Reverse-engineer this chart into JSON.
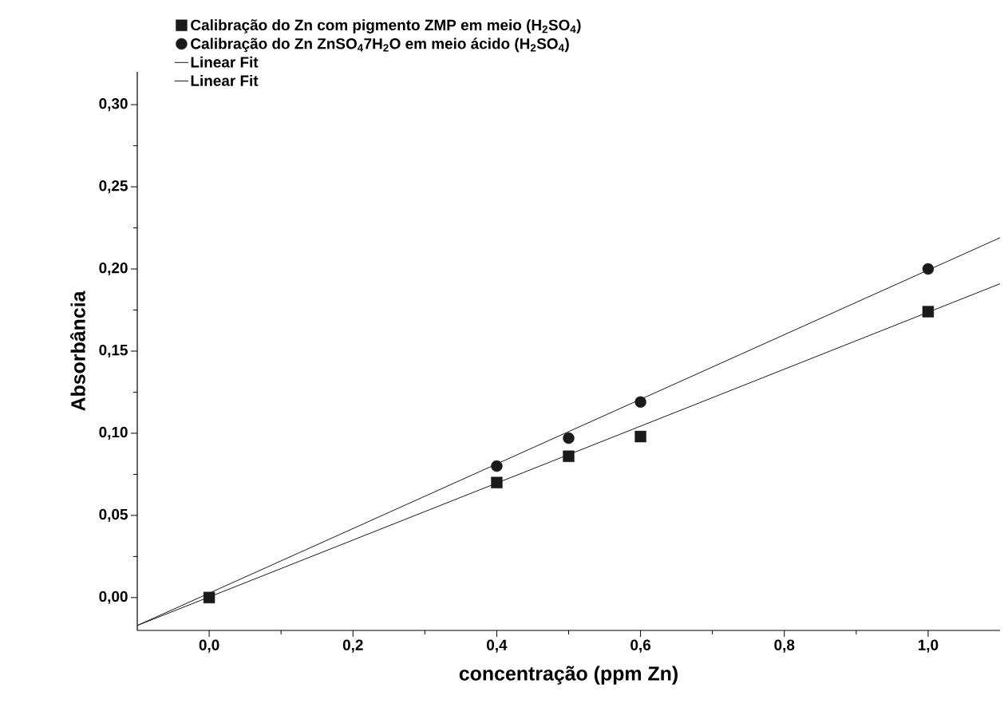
{
  "chart_data": {
    "type": "scatter",
    "xlabel": "concentração (ppm Zn)",
    "ylabel": "Absorbância",
    "xlim": [
      -0.1,
      1.1
    ],
    "ylim": [
      -0.02,
      0.32
    ],
    "xticks": [
      {
        "value": 0,
        "label": "0,0"
      },
      {
        "value": 0.2,
        "label": "0,2"
      },
      {
        "value": 0.4,
        "label": "0,4"
      },
      {
        "value": 0.6,
        "label": "0,6"
      },
      {
        "value": 0.8,
        "label": "0,8"
      },
      {
        "value": 1.0,
        "label": "1,0"
      }
    ],
    "yticks": [
      {
        "value": 0,
        "label": "0,00"
      },
      {
        "value": 0.05,
        "label": "0,05"
      },
      {
        "value": 0.1,
        "label": "0,10"
      },
      {
        "value": 0.15,
        "label": "0,15"
      },
      {
        "value": 0.2,
        "label": "0,20"
      },
      {
        "value": 0.25,
        "label": "0,25"
      },
      {
        "value": 0.3,
        "label": "0,30"
      }
    ],
    "grid": false,
    "legend": "top left",
    "series": [
      {
        "name": "Calibração do Zn com pigmento ZMP em meio (H$_{2}$SO$_{4}$)",
        "marker": "square",
        "color": "#1a1a1a",
        "x": [
          0,
          0.4,
          0.5,
          0.6,
          1.0
        ],
        "values": [
          0,
          0.07,
          0.086,
          0.098,
          0.174
        ]
      },
      {
        "name": "Calibração do Zn ZnSO$_{4}$7H$_{2}$O em meio ácido (H$_{2}$SO$_{4}$)",
        "marker": "circle",
        "color": "#1a1a1a",
        "x": [
          0.4,
          0.5,
          0.6,
          1.0
        ],
        "values": [
          0.08,
          0.097,
          0.119,
          0.2
        ]
      },
      {
        "name": "Linear Fit",
        "type": "line",
        "marker": "none",
        "line_style": "solid",
        "color": "#1a1a1a",
        "x": [
          -0.1,
          1.1
        ],
        "values": [
          -0.017,
          0.191
        ]
      },
      {
        "name": "Linear Fit",
        "type": "line",
        "marker": "none",
        "line_style": "solid",
        "color": "#1a1a1a",
        "x": [
          -0.1,
          1.1
        ],
        "values": [
          -0.017,
          0.219
        ]
      }
    ]
  }
}
